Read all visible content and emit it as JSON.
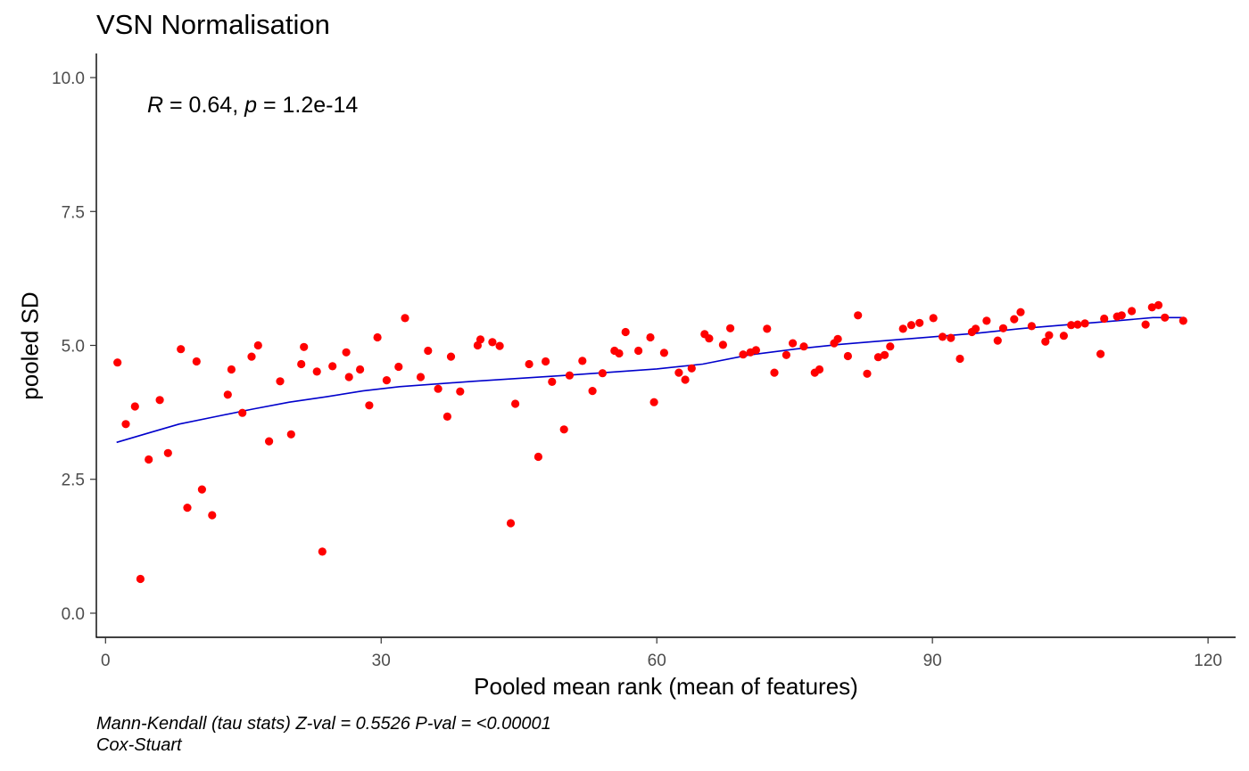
{
  "chart_data": {
    "type": "scatter",
    "title": "VSN Normalisation",
    "xlabel": "Pooled mean rank (mean of features)",
    "ylabel": "pooled SD",
    "xlim": [
      -1.0,
      123.0
    ],
    "ylim": [
      -0.45,
      10.45
    ],
    "xticks": [
      0,
      30,
      60,
      90,
      120
    ],
    "yticks": [
      0.0,
      2.5,
      5.0,
      7.5,
      10.0
    ],
    "xtick_labels": [
      "0",
      "30",
      "60",
      "90",
      "120"
    ],
    "ytick_labels": [
      "0.0",
      "2.5",
      "5.0",
      "7.5",
      "10.0"
    ],
    "grid": false,
    "annotation": {
      "r_symbol": "R",
      "r_text": " = 0.64, ",
      "p_symbol": "p",
      "p_text": " = 1.2e-14"
    },
    "caption": [
      "Mann-Kendall (tau stats) Z-val = 0.5526 P-val = <0.00001",
      "Cox-Stuart"
    ],
    "colors": {
      "points": "#ff0000",
      "trend": "#0000cc"
    },
    "points": [
      [
        1.3,
        4.68
      ],
      [
        2.2,
        3.53
      ],
      [
        3.2,
        3.86
      ],
      [
        3.8,
        0.64
      ],
      [
        4.7,
        2.87
      ],
      [
        5.9,
        3.98
      ],
      [
        6.8,
        2.99
      ],
      [
        8.2,
        4.93
      ],
      [
        8.9,
        1.97
      ],
      [
        9.9,
        4.7
      ],
      [
        10.5,
        2.31
      ],
      [
        11.6,
        1.83
      ],
      [
        13.3,
        4.08
      ],
      [
        13.7,
        4.55
      ],
      [
        14.9,
        3.74
      ],
      [
        15.9,
        4.79
      ],
      [
        16.6,
        5.0
      ],
      [
        17.8,
        3.21
      ],
      [
        19.0,
        4.33
      ],
      [
        20.2,
        3.34
      ],
      [
        21.3,
        4.65
      ],
      [
        21.6,
        4.97
      ],
      [
        23.0,
        4.51
      ],
      [
        23.6,
        1.15
      ],
      [
        24.7,
        4.61
      ],
      [
        26.2,
        4.87
      ],
      [
        26.5,
        4.41
      ],
      [
        27.7,
        4.55
      ],
      [
        28.7,
        3.88
      ],
      [
        29.6,
        5.15
      ],
      [
        30.6,
        4.35
      ],
      [
        31.9,
        4.6
      ],
      [
        32.6,
        5.51
      ],
      [
        34.3,
        4.41
      ],
      [
        35.1,
        4.9
      ],
      [
        36.2,
        4.19
      ],
      [
        37.2,
        3.67
      ],
      [
        37.6,
        4.79
      ],
      [
        38.6,
        4.14
      ],
      [
        40.5,
        5.0
      ],
      [
        40.8,
        5.11
      ],
      [
        42.1,
        5.06
      ],
      [
        42.9,
        4.99
      ],
      [
        44.1,
        1.68
      ],
      [
        44.6,
        3.91
      ],
      [
        46.1,
        4.65
      ],
      [
        47.1,
        2.92
      ],
      [
        47.9,
        4.7
      ],
      [
        48.6,
        4.32
      ],
      [
        49.9,
        3.43
      ],
      [
        50.5,
        4.44
      ],
      [
        51.9,
        4.71
      ],
      [
        53.0,
        4.15
      ],
      [
        54.1,
        4.48
      ],
      [
        55.4,
        4.9
      ],
      [
        55.9,
        4.85
      ],
      [
        56.6,
        5.25
      ],
      [
        58.0,
        4.9
      ],
      [
        59.3,
        5.15
      ],
      [
        59.7,
        3.94
      ],
      [
        60.8,
        4.86
      ],
      [
        62.4,
        4.49
      ],
      [
        63.1,
        4.36
      ],
      [
        63.8,
        4.57
      ],
      [
        65.2,
        5.21
      ],
      [
        65.7,
        5.13
      ],
      [
        67.2,
        5.01
      ],
      [
        68.0,
        5.32
      ],
      [
        69.4,
        4.83
      ],
      [
        70.2,
        4.87
      ],
      [
        70.8,
        4.91
      ],
      [
        72.0,
        5.31
      ],
      [
        72.8,
        4.49
      ],
      [
        74.1,
        4.82
      ],
      [
        74.8,
        5.04
      ],
      [
        76.0,
        4.98
      ],
      [
        77.2,
        4.49
      ],
      [
        77.7,
        4.55
      ],
      [
        79.3,
        5.04
      ],
      [
        79.7,
        5.12
      ],
      [
        80.8,
        4.8
      ],
      [
        81.9,
        5.56
      ],
      [
        82.9,
        4.47
      ],
      [
        84.1,
        4.78
      ],
      [
        84.8,
        4.82
      ],
      [
        85.4,
        4.98
      ],
      [
        86.8,
        5.31
      ],
      [
        87.7,
        5.38
      ],
      [
        88.6,
        5.42
      ],
      [
        90.1,
        5.51
      ],
      [
        91.1,
        5.16
      ],
      [
        92.0,
        5.14
      ],
      [
        93.0,
        4.75
      ],
      [
        94.3,
        5.25
      ],
      [
        94.7,
        5.31
      ],
      [
        95.9,
        5.46
      ],
      [
        97.1,
        5.09
      ],
      [
        97.7,
        5.32
      ],
      [
        98.9,
        5.49
      ],
      [
        99.6,
        5.62
      ],
      [
        100.8,
        5.36
      ],
      [
        102.3,
        5.07
      ],
      [
        102.7,
        5.19
      ],
      [
        104.3,
        5.18
      ],
      [
        105.1,
        5.38
      ],
      [
        105.8,
        5.39
      ],
      [
        106.6,
        5.41
      ],
      [
        108.3,
        4.84
      ],
      [
        108.7,
        5.5
      ],
      [
        110.1,
        5.54
      ],
      [
        110.6,
        5.56
      ],
      [
        111.7,
        5.64
      ],
      [
        113.2,
        5.39
      ],
      [
        113.9,
        5.71
      ],
      [
        114.6,
        5.75
      ],
      [
        115.3,
        5.52
      ],
      [
        117.3,
        5.46
      ]
    ],
    "trend": [
      [
        1.2,
        3.19
      ],
      [
        5.0,
        3.38
      ],
      [
        8.0,
        3.53
      ],
      [
        12.0,
        3.67
      ],
      [
        16.0,
        3.81
      ],
      [
        20.0,
        3.94
      ],
      [
        24.0,
        4.04
      ],
      [
        28.0,
        4.15
      ],
      [
        32.0,
        4.23
      ],
      [
        40.0,
        4.33
      ],
      [
        50.0,
        4.44
      ],
      [
        60.0,
        4.56
      ],
      [
        65.0,
        4.65
      ],
      [
        70.0,
        4.82
      ],
      [
        75.0,
        4.93
      ],
      [
        80.0,
        5.02
      ],
      [
        85.0,
        5.09
      ],
      [
        90.0,
        5.16
      ],
      [
        95.0,
        5.23
      ],
      [
        100.0,
        5.32
      ],
      [
        105.0,
        5.39
      ],
      [
        110.0,
        5.46
      ],
      [
        114.0,
        5.52
      ],
      [
        117.3,
        5.52
      ]
    ]
  }
}
